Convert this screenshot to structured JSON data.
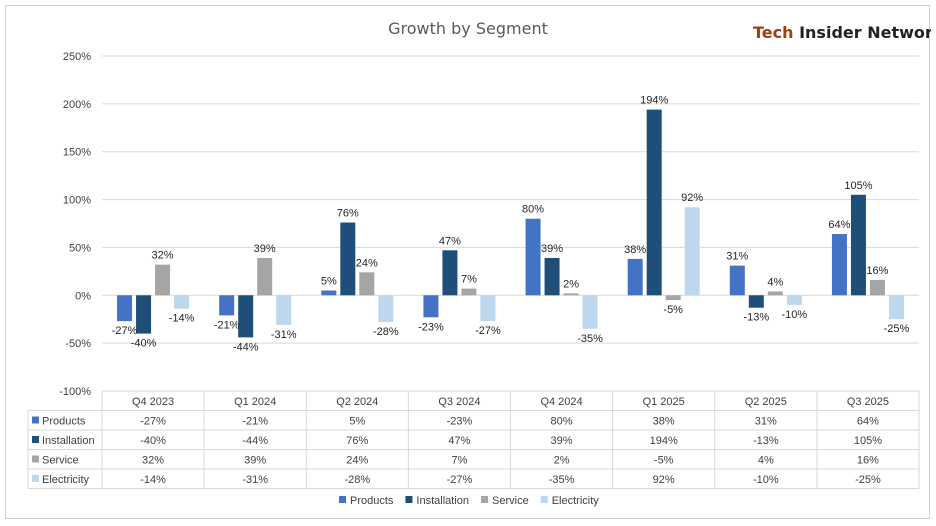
{
  "brand": {
    "part1": "Tech",
    "part2": " Insider Network"
  },
  "colors": {
    "products": "#4472c4",
    "installation": "#1f4e79",
    "service": "#a5a5a5",
    "electricity": "#bdd7ee",
    "grid": "#d9d9d9"
  },
  "chart_data": {
    "type": "bar",
    "title": "Growth by Segment",
    "categories": [
      "Q4 2023",
      "Q1 2024",
      "Q2 2024",
      "Q3 2024",
      "Q4 2024",
      "Q1 2025",
      "Q2 2025",
      "Q3 2025"
    ],
    "series": [
      {
        "name": "Products",
        "values": [
          -27,
          -21,
          5,
          -23,
          80,
          38,
          31,
          64
        ],
        "labels": [
          "-27%",
          "-21%",
          "5%",
          "-23%",
          "80%",
          "38%",
          "31%",
          "64%"
        ]
      },
      {
        "name": "Installation",
        "values": [
          -40,
          -44,
          76,
          47,
          39,
          194,
          -13,
          105
        ],
        "labels": [
          "-40%",
          "-44%",
          "76%",
          "47%",
          "39%",
          "194%",
          "-13%",
          "105%"
        ]
      },
      {
        "name": "Service",
        "values": [
          32,
          39,
          24,
          7,
          2,
          -5,
          4,
          16
        ],
        "labels": [
          "32%",
          "39%",
          "24%",
          "7%",
          "2%",
          "-5%",
          "4%",
          "16%"
        ]
      },
      {
        "name": "Electricity",
        "values": [
          -14,
          -31,
          -28,
          -27,
          -35,
          92,
          -10,
          -25
        ],
        "labels": [
          "-14%",
          "-31%",
          "-28%",
          "-27%",
          "-35%",
          "92%",
          "-10%",
          "-25%"
        ]
      }
    ],
    "yticks": [
      -100,
      -50,
      0,
      50,
      100,
      150,
      200,
      250
    ],
    "ytick_labels": [
      "-100%",
      "-50%",
      "0%",
      "50%",
      "100%",
      "150%",
      "200%",
      "250%"
    ],
    "ylim": [
      -100,
      250
    ],
    "grid": true,
    "legend": "bottom",
    "data_table": true
  }
}
